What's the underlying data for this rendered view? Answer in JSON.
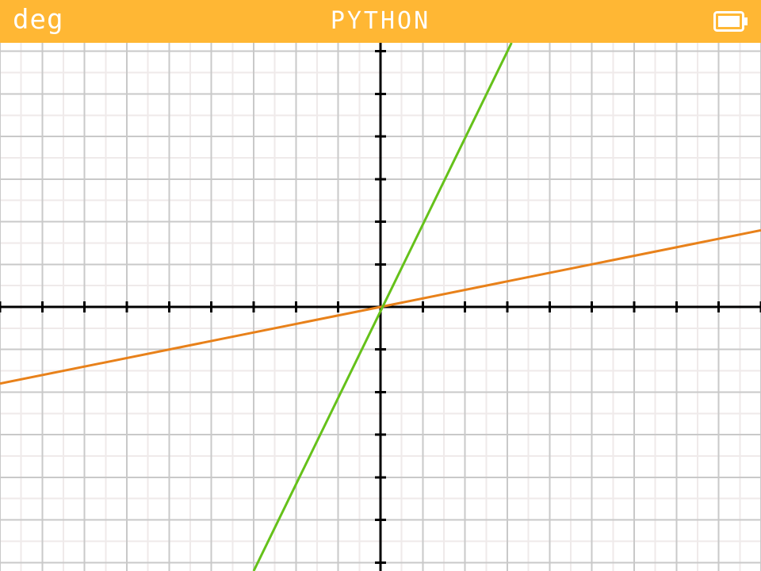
{
  "title_bar": {
    "angle_mode": "deg",
    "title": "PYTHON",
    "battery_icon": "battery-full-icon",
    "background_color": "#FFB734",
    "text_color": "#FFFFFF"
  },
  "chart_data": {
    "type": "line",
    "xlim": [
      -9,
      9
    ],
    "ylim": [
      -6.2,
      6.2
    ],
    "major_grid_step": 1,
    "minor_grid_step": 0.5,
    "grid": true,
    "colors": {
      "minor_grid": "#EFEAEA",
      "major_grid": "#C9C9C9",
      "axis": "#000000"
    },
    "series": [
      {
        "color": "#E8811A",
        "x": [
          -9,
          9
        ],
        "y": [
          -1.8,
          1.8
        ]
      },
      {
        "color": "#65C11A",
        "x": [
          -3,
          3.1
        ],
        "y": [
          -6.2,
          6.2
        ]
      }
    ]
  }
}
